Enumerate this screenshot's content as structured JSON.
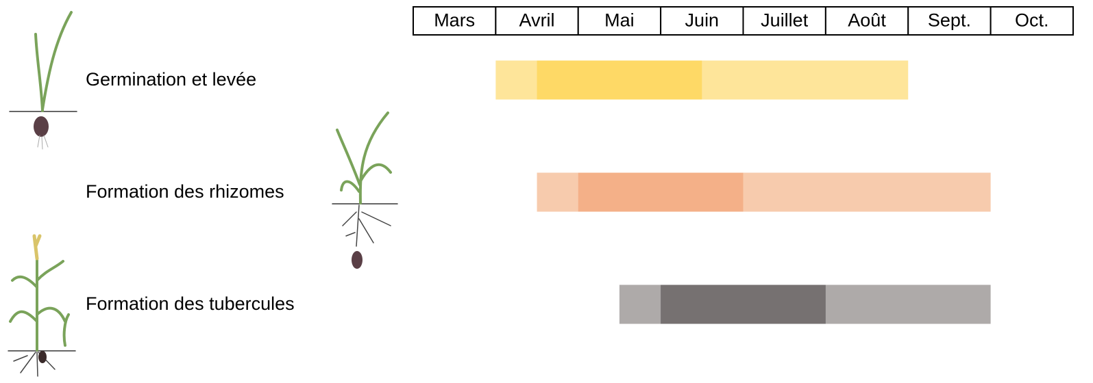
{
  "months": [
    "Mars",
    "Avril",
    "Mai",
    "Juin",
    "Juillet",
    "Août",
    "Sept.",
    "Oct."
  ],
  "phases": [
    {
      "label": "Germination et levée",
      "start": 1.0,
      "peak_start": 1.5,
      "peak_end": 3.5,
      "end": 6.0,
      "color_light": "#fee59a",
      "color_dark": "#fed966"
    },
    {
      "label": "Formation des rhizomes",
      "start": 1.5,
      "peak_start": 2.0,
      "peak_end": 4.0,
      "end": 7.0,
      "color_light": "#f7cbad",
      "color_dark": "#f4b088"
    },
    {
      "label": "Formation des tubercules",
      "start": 2.5,
      "peak_start": 3.0,
      "peak_end": 5.0,
      "end": 7.0,
      "color_light": "#aeaaa9",
      "color_dark": "#767171"
    }
  ]
}
